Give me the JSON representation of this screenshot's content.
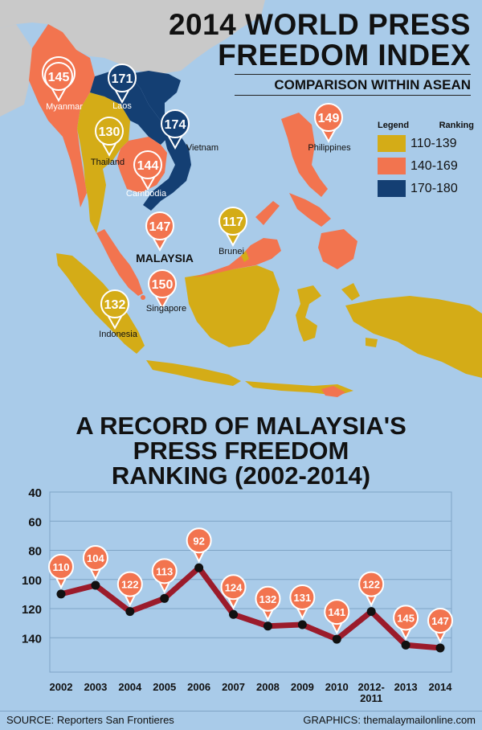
{
  "title": {
    "line1": "2014 WORLD PRESS",
    "line2": "FREEDOM INDEX"
  },
  "subtitle": "COMPARISON WITHIN ASEAN",
  "legend": {
    "header_left": "Legend",
    "header_right": "Ranking",
    "items": [
      {
        "label": "110-139",
        "color": "#d4ac17"
      },
      {
        "label": "140-169",
        "color": "#f2744f"
      },
      {
        "label": "170-180",
        "color": "#143f73"
      }
    ]
  },
  "map_labels": {
    "myanmar": {
      "name": "Myanmar",
      "rank": "145"
    },
    "laos": {
      "name": "Laos",
      "rank": "171"
    },
    "vietnam": {
      "name": "Vietnam",
      "rank": "174"
    },
    "thailand": {
      "name": "Thailand",
      "rank": "130"
    },
    "cambodia": {
      "name": "Cambodia",
      "rank": "144"
    },
    "philippines": {
      "name": "Philippines",
      "rank": "149"
    },
    "malaysia": {
      "name": "MALAYSIA",
      "rank": "147"
    },
    "brunei": {
      "name": "Brunei",
      "rank": "117"
    },
    "singapore": {
      "name": "Singapore",
      "rank": "150"
    },
    "indonesia": {
      "name": "Indonesia",
      "rank": "132"
    }
  },
  "chart_title": {
    "line1": "A RECORD OF MALAYSIA'S",
    "line2": "PRESS FREEDOM",
    "line3": "RANKING (2002-2014)"
  },
  "chart_data": {
    "type": "line",
    "title": "A RECORD OF MALAYSIA'S PRESS FREEDOM RANKING (2002-2014)",
    "categories": [
      "2002",
      "2003",
      "2004",
      "2005",
      "2006",
      "2007",
      "2008",
      "2009",
      "2010",
      "2012-2011",
      "2013",
      "2014"
    ],
    "category_labels": [
      [
        "2002"
      ],
      [
        "2003"
      ],
      [
        "2004"
      ],
      [
        "2005"
      ],
      [
        "2006"
      ],
      [
        "2007"
      ],
      [
        "2008"
      ],
      [
        "2009"
      ],
      [
        "2010"
      ],
      [
        "2012-",
        "2011"
      ],
      [
        "2013"
      ],
      [
        "2014"
      ]
    ],
    "values": [
      110,
      104,
      122,
      113,
      92,
      124,
      132,
      131,
      141,
      122,
      145,
      147
    ],
    "yticks": [
      "40",
      "60",
      "80",
      "100",
      "120",
      "140"
    ],
    "ylim": [
      40,
      160
    ],
    "y_inverted": true,
    "grid": true,
    "line_color": "#9b1b2b",
    "marker_color": "#f2744f"
  },
  "footer": {
    "source": "SOURCE: Reporters San Frontieres",
    "graphics": "GRAPHICS: themalaymailonline.com"
  }
}
